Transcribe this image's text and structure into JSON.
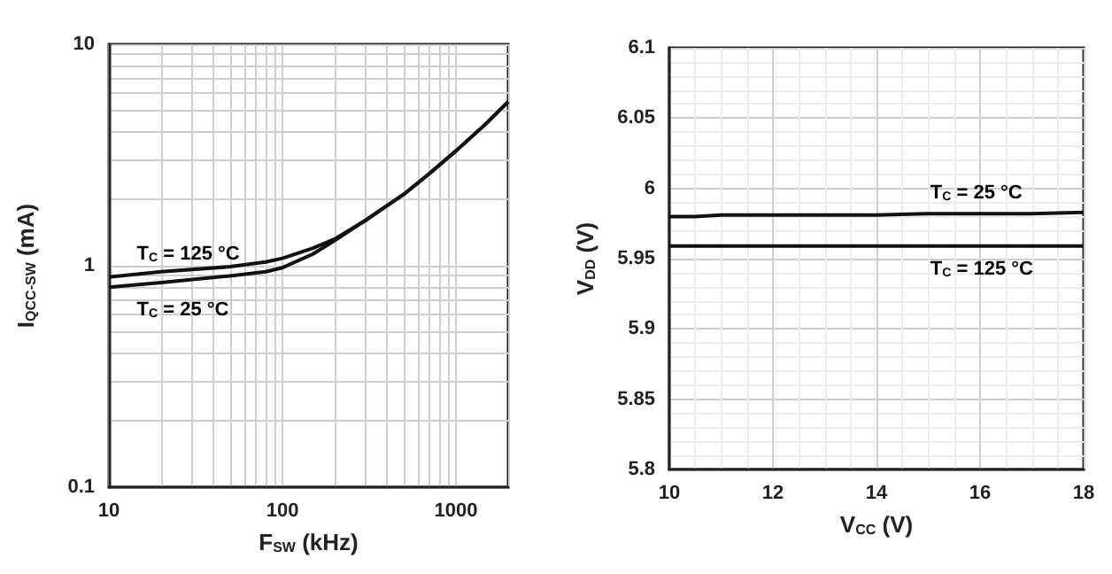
{
  "chart_data": [
    {
      "type": "line",
      "xlabel": "F$_{SW}$ (kHz)",
      "ylabel": "I$_{QCC-SW}$ (mA)",
      "log": "xy",
      "grid": true,
      "marker": "none",
      "line_style": "solid",
      "xlim": [
        10,
        2000
      ],
      "ylim": [
        0.1,
        10
      ],
      "xticks": [
        10,
        {
          "value": 20,
          "label": null
        },
        {
          "value": 30,
          "label": null
        },
        {
          "value": 40,
          "label": null
        },
        {
          "value": 50,
          "label": null
        },
        {
          "value": 60,
          "label": null
        },
        {
          "value": 70,
          "label": null
        },
        {
          "value": 80,
          "label": null
        },
        {
          "value": 90,
          "label": null
        },
        100,
        {
          "value": 200,
          "label": null
        },
        {
          "value": 300,
          "label": null
        },
        {
          "value": 400,
          "label": null
        },
        {
          "value": 500,
          "label": null
        },
        {
          "value": 600,
          "label": null
        },
        {
          "value": 700,
          "label": null
        },
        {
          "value": 800,
          "label": null
        },
        {
          "value": 900,
          "label": null
        },
        1000,
        {
          "value": 2000,
          "label": null
        }
      ],
      "yticks": [
        0.1,
        {
          "value": 0.2,
          "label": null
        },
        {
          "value": 0.3,
          "label": null
        },
        {
          "value": 0.4,
          "label": null
        },
        {
          "value": 0.5,
          "label": null
        },
        {
          "value": 0.6,
          "label": null
        },
        {
          "value": 0.7,
          "label": null
        },
        {
          "value": 0.8,
          "label": null
        },
        {
          "value": 0.9,
          "label": null
        },
        1,
        {
          "value": 2,
          "label": null
        },
        {
          "value": 3,
          "label": null
        },
        {
          "value": 4,
          "label": null
        },
        {
          "value": 5,
          "label": null
        },
        {
          "value": 6,
          "label": null
        },
        {
          "value": 7,
          "label": null
        },
        {
          "value": 8,
          "label": null
        },
        {
          "value": 9,
          "label": null
        },
        10
      ],
      "series": [
        {
          "name": "T$_{C}$ = 125 °C",
          "color": "#111111",
          "x": [
            10,
            20,
            50,
            80,
            100,
            150,
            200,
            300,
            500,
            700,
            1000,
            1500,
            2000
          ],
          "values": [
            0.89,
            0.94,
            0.99,
            1.04,
            1.08,
            1.2,
            1.32,
            1.6,
            2.1,
            2.6,
            3.3,
            4.4,
            5.5
          ]
        },
        {
          "name": "T$_{C}$ = 25 °C",
          "color": "#111111",
          "x": [
            10,
            20,
            50,
            80,
            100,
            150,
            200,
            300,
            500,
            700,
            1000,
            1500,
            2000
          ],
          "values": [
            0.8,
            0.84,
            0.9,
            0.94,
            0.98,
            1.13,
            1.3,
            1.6,
            2.1,
            2.6,
            3.3,
            4.4,
            5.5
          ]
        }
      ],
      "legend": false
    },
    {
      "type": "line",
      "xlabel": "V$_{CC}$ (V)",
      "ylabel": "V$_{DD}$ (V)",
      "grid": true,
      "marker": "none",
      "line_style": "solid",
      "xlim": [
        10,
        18
      ],
      "ylim": [
        5.8,
        6.1
      ],
      "xticks": [
        10,
        12,
        14,
        16,
        18
      ],
      "yticks": [
        5.8,
        5.85,
        5.9,
        5.95,
        6,
        6.05,
        6.1
      ],
      "series": [
        {
          "name": "T$_{C}$ = 25 °C",
          "color": "#111111",
          "x": [
            10,
            10.5,
            11,
            12,
            13,
            14,
            15,
            16,
            17,
            18
          ],
          "values": [
            5.98,
            5.98,
            5.981,
            5.981,
            5.981,
            5.981,
            5.982,
            5.982,
            5.982,
            5.983
          ]
        },
        {
          "name": "T$_{C}$ = 125 °C",
          "color": "#111111",
          "x": [
            10,
            10.5,
            11,
            12,
            13,
            14,
            15,
            16,
            17,
            18
          ],
          "values": [
            5.959,
            5.959,
            5.959,
            5.959,
            5.959,
            5.959,
            5.959,
            5.959,
            5.959,
            5.959
          ]
        }
      ],
      "legend": false
    }
  ]
}
